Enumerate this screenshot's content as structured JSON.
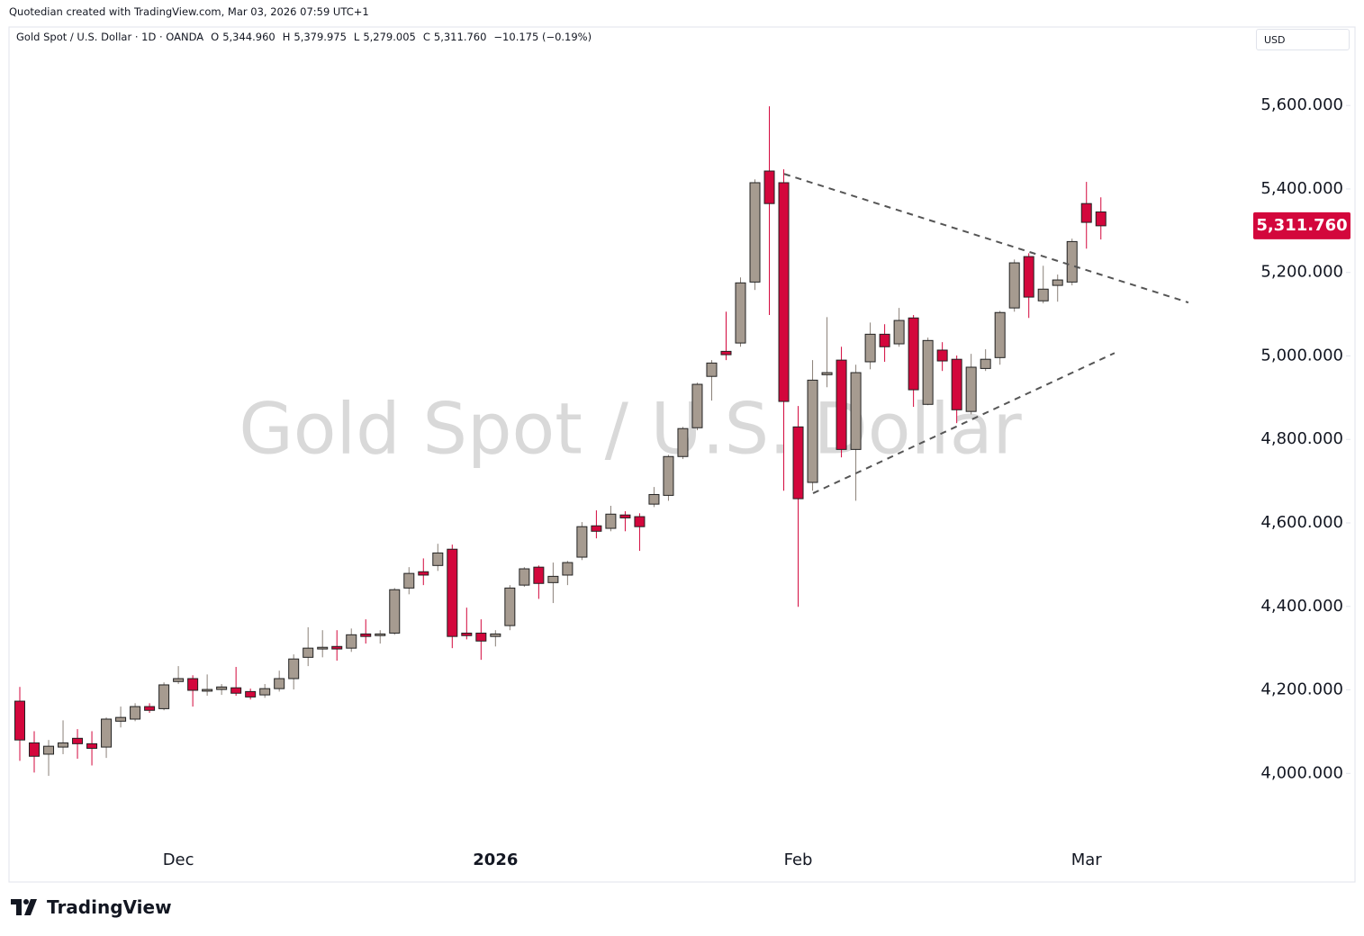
{
  "header": {
    "credit": "Quotedian created with TradingView.com, Mar 03, 2026 07:59 UTC+1",
    "currency": "USD",
    "brand": "TradingView"
  },
  "legend": {
    "symbol": "Gold Spot / U.S. Dollar · 1D · OANDA",
    "o_key": "O",
    "o": "5,344.960",
    "h_key": "H",
    "h": "5,379.975",
    "l_key": "L",
    "l": "5,279.005",
    "c_key": "C",
    "c": "5,311.760",
    "change": "−10.175 (−0.19%)"
  },
  "chart_data": {
    "type": "candlestick",
    "watermark": "Gold Spot / U.S. Dollar",
    "categories": [
      null,
      null,
      null,
      null,
      null,
      null,
      null,
      null,
      null,
      null,
      null,
      "Dec",
      null,
      null,
      null,
      null,
      null,
      null,
      null,
      null,
      null,
      null,
      null,
      null,
      null,
      null,
      null,
      null,
      null,
      null,
      null,
      null,
      null,
      "2026",
      null,
      null,
      null,
      null,
      null,
      null,
      null,
      null,
      null,
      null,
      null,
      null,
      null,
      null,
      null,
      null,
      null,
      null,
      null,
      null,
      "Feb",
      null,
      null,
      null,
      null,
      null,
      null,
      null,
      null,
      null,
      null,
      null,
      null,
      null,
      null,
      null,
      null,
      null,
      null,
      null,
      "Mar",
      null
    ],
    "open": [
      4173,
      4073,
      4046,
      4063,
      4084,
      4071,
      4063,
      4125,
      4130,
      4160,
      4155,
      4220,
      4227,
      4197,
      4201,
      4205,
      4196,
      4188,
      4203,
      4227,
      4278,
      4298,
      4304,
      4300,
      4334,
      4330,
      4336,
      4444,
      4483,
      4498,
      4537,
      4336,
      4336,
      4328,
      4354,
      4451,
      4494,
      4457,
      4475,
      4518,
      4593,
      4587,
      4619,
      4615,
      4645,
      4666,
      4759,
      4828,
      4951,
      5011,
      5031,
      5177,
      5443,
      5415,
      4830,
      4697,
      4955,
      4990,
      4776,
      4986,
      5052,
      5029,
      5091,
      4884,
      5014,
      4992,
      4867,
      4970,
      4996,
      5115,
      5238,
      5132,
      5169,
      5177,
      5365,
      5344.96
    ],
    "high": [
      4207,
      4101,
      4080,
      4127,
      4106,
      4101,
      4134,
      4160,
      4168,
      4168,
      4218,
      4257,
      4235,
      4237,
      4214,
      4255,
      4203,
      4214,
      4246,
      4285,
      4350,
      4343,
      4343,
      4347,
      4369,
      4343,
      4444,
      4494,
      4515,
      4550,
      4548,
      4397,
      4369,
      4343,
      4451,
      4494,
      4498,
      4505,
      4509,
      4602,
      4630,
      4641,
      4628,
      4623,
      4686,
      4763,
      4830,
      4936,
      4990,
      5106,
      5188,
      5423,
      5598,
      5447,
      4880,
      4990,
      5093,
      5022,
      4979,
      5080,
      5076,
      5115,
      5098,
      5044,
      5033,
      5001,
      5005,
      5016,
      5108,
      5231,
      5246,
      5216,
      5195,
      5281,
      5417,
      5379.975
    ],
    "low": [
      4030,
      4002,
      3994,
      4046,
      4035,
      4019,
      4037,
      4110,
      4125,
      4145,
      4151,
      4214,
      4160,
      4186,
      4188,
      4186,
      4177,
      4181,
      4196,
      4201,
      4257,
      4278,
      4270,
      4291,
      4311,
      4311,
      4332,
      4429,
      4451,
      4485,
      4300,
      4321,
      4272,
      4304,
      4343,
      4447,
      4418,
      4408,
      4451,
      4511,
      4563,
      4580,
      4580,
      4533,
      4638,
      4653,
      4753,
      4822,
      4893,
      4990,
      5022,
      5158,
      5098,
      4677,
      4399,
      4677,
      4925,
      4757,
      4653,
      4968,
      4986,
      5022,
      4878,
      4882,
      4964,
      4839,
      4860,
      4964,
      4979,
      5106,
      5091,
      5126,
      5130,
      5169,
      5257,
      5279.005
    ],
    "close": [
      4080,
      4041,
      4065,
      4073,
      4071,
      4060,
      4130,
      4134,
      4160,
      4151,
      4212,
      4227,
      4199,
      4201,
      4207,
      4192,
      4183,
      4203,
      4227,
      4274,
      4300,
      4302,
      4298,
      4332,
      4328,
      4334,
      4440,
      4479,
      4475,
      4528,
      4328,
      4330,
      4317,
      4334,
      4444,
      4490,
      4455,
      4472,
      4505,
      4591,
      4580,
      4621,
      4612,
      4591,
      4668,
      4759,
      4826,
      4932,
      4983,
      5003,
      5175,
      5415,
      5365,
      4891,
      4658,
      4942,
      4960,
      4776,
      4960,
      5052,
      5022,
      5085,
      4919,
      5037,
      4988,
      4871,
      4973,
      4992,
      5104,
      5223,
      5141,
      5160,
      5182,
      5274,
      5320,
      5311.76
    ],
    "up_color": "#a69b90",
    "down_color": "#d3073c",
    "last_price_label": "5,311.760",
    "ylim": [
      3826,
      5788
    ],
    "yticks": [
      {
        "value": 4000,
        "label": "4,000.000"
      },
      {
        "value": 4200,
        "label": "4,200.000"
      },
      {
        "value": 4400,
        "label": "4,400.000"
      },
      {
        "value": 4600,
        "label": "4,600.000"
      },
      {
        "value": 4800,
        "label": "4,800.000"
      },
      {
        "value": 5000,
        "label": "5,000.000"
      },
      {
        "value": 5200,
        "label": "5,200.000"
      },
      {
        "value": 5400,
        "label": "5,400.000"
      },
      {
        "value": 5600,
        "label": "5,600.000"
      }
    ],
    "trendlines": [
      {
        "x": [
          53.03,
          81.07
        ],
        "y": [
          5436,
          5128
        ]
      },
      {
        "x": [
          55.03,
          75.95
        ],
        "y": [
          4671,
          5007
        ]
      }
    ],
    "trendline_color": "#555555"
  }
}
